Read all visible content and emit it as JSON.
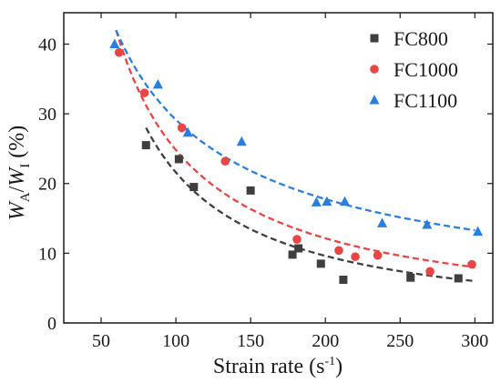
{
  "chart_data": {
    "type": "scatter",
    "xlabel": "Strain rate (s-1)",
    "ylabel": "WA/WI (%)",
    "xlim": [
      25,
      312
    ],
    "ylim": [
      0,
      44.5
    ],
    "x_ticks": [
      50,
      100,
      150,
      200,
      250,
      300
    ],
    "y_ticks": [
      0,
      10,
      20,
      30,
      40
    ],
    "legend_position": "top-right",
    "series": [
      {
        "name": "FC800",
        "color": "#3f3f3f",
        "marker": "square",
        "x": [
          80,
          102,
          112,
          150,
          178,
          182,
          197,
          212,
          257,
          289
        ],
        "y": [
          25.5,
          23.5,
          19.5,
          19,
          9.8,
          10.7,
          8.5,
          6.2,
          6.5,
          6.4
        ],
        "fit": {
          "x_start": 80,
          "x_end": 300,
          "y": [
            28,
            6
          ]
        }
      },
      {
        "name": "FC1000",
        "color": "#e84545",
        "marker": "circle",
        "x": [
          62,
          79,
          104,
          133,
          181,
          209,
          220,
          235,
          270,
          298
        ],
        "y": [
          38.8,
          33,
          28,
          23.2,
          12,
          10.4,
          9.5,
          9.7,
          7.4,
          8.4
        ],
        "fit": {
          "x_start": 60,
          "x_end": 300,
          "y": [
            42,
            8
          ]
        }
      },
      {
        "name": "FC1100",
        "color": "#2a7ee0",
        "marker": "triangle",
        "x": [
          59,
          88,
          108,
          144,
          194,
          201,
          213,
          238,
          268,
          302
        ],
        "y": [
          40,
          34.2,
          27.3,
          26,
          17.3,
          17.4,
          17.4,
          14.3,
          14.1,
          13.1
        ],
        "fit": {
          "x_start": 60,
          "x_end": 300,
          "y": [
            42,
            13.3
          ]
        }
      }
    ]
  }
}
